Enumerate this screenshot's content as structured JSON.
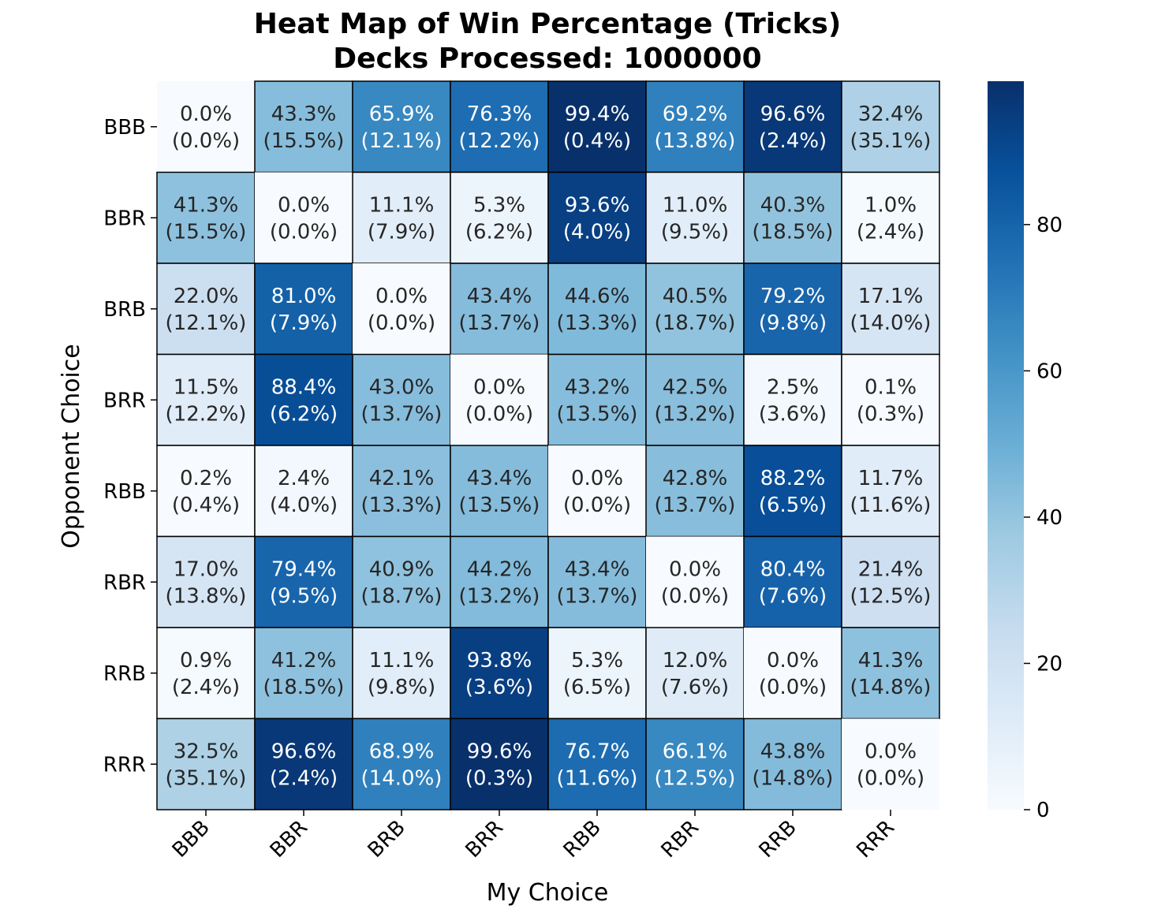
{
  "chart_data": {
    "type": "heatmap",
    "title": "Heat Map of Win Percentage (Tricks)",
    "subtitle": "Decks Processed: 1000000",
    "xlabel": "My Choice",
    "ylabel": "Opponent Choice",
    "x_categories": [
      "BBB",
      "BBR",
      "BRB",
      "BRR",
      "RBB",
      "RBR",
      "RRB",
      "RRR"
    ],
    "y_categories": [
      "BBB",
      "BBR",
      "BRB",
      "BRR",
      "RBB",
      "RBR",
      "RRB",
      "RRR"
    ],
    "values": [
      [
        0.0,
        43.3,
        65.9,
        76.3,
        99.4,
        69.2,
        96.6,
        32.4
      ],
      [
        41.3,
        0.0,
        11.1,
        5.3,
        93.6,
        11.0,
        40.3,
        1.0
      ],
      [
        22.0,
        81.0,
        0.0,
        43.4,
        44.6,
        40.5,
        79.2,
        17.1
      ],
      [
        11.5,
        88.4,
        43.0,
        0.0,
        43.2,
        42.5,
        2.5,
        0.1
      ],
      [
        0.2,
        2.4,
        42.1,
        43.4,
        0.0,
        42.8,
        88.2,
        11.7
      ],
      [
        17.0,
        79.4,
        40.9,
        44.2,
        43.4,
        0.0,
        80.4,
        21.4
      ],
      [
        0.9,
        41.2,
        11.1,
        93.8,
        5.3,
        12.0,
        0.0,
        41.3
      ],
      [
        32.5,
        96.6,
        68.9,
        99.6,
        76.7,
        66.1,
        43.8,
        0.0
      ]
    ],
    "secondary_values": [
      [
        0.0,
        15.5,
        12.1,
        12.2,
        0.4,
        13.8,
        2.4,
        35.1
      ],
      [
        15.5,
        0.0,
        7.9,
        6.2,
        4.0,
        9.5,
        18.5,
        2.4
      ],
      [
        12.1,
        7.9,
        0.0,
        13.7,
        13.3,
        18.7,
        9.8,
        14.0
      ],
      [
        12.2,
        6.2,
        13.7,
        0.0,
        13.5,
        13.2,
        3.6,
        0.3
      ],
      [
        0.4,
        4.0,
        13.3,
        13.5,
        0.0,
        13.7,
        6.5,
        11.6
      ],
      [
        13.8,
        9.5,
        18.7,
        13.2,
        13.7,
        0.0,
        7.6,
        12.5
      ],
      [
        2.4,
        18.5,
        9.8,
        3.6,
        6.5,
        7.6,
        0.0,
        14.8
      ],
      [
        35.1,
        2.4,
        14.0,
        0.3,
        11.6,
        12.5,
        14.8,
        0.0
      ]
    ],
    "colormap": "Blues",
    "color_range": [
      0,
      99.6
    ],
    "colorbar_ticks": [
      0,
      20,
      40,
      60,
      80
    ],
    "colorbar_tick_labels": [
      "0",
      "20",
      "40",
      "60",
      "80"
    ],
    "grid": false,
    "cell_border_color": "#000000"
  }
}
